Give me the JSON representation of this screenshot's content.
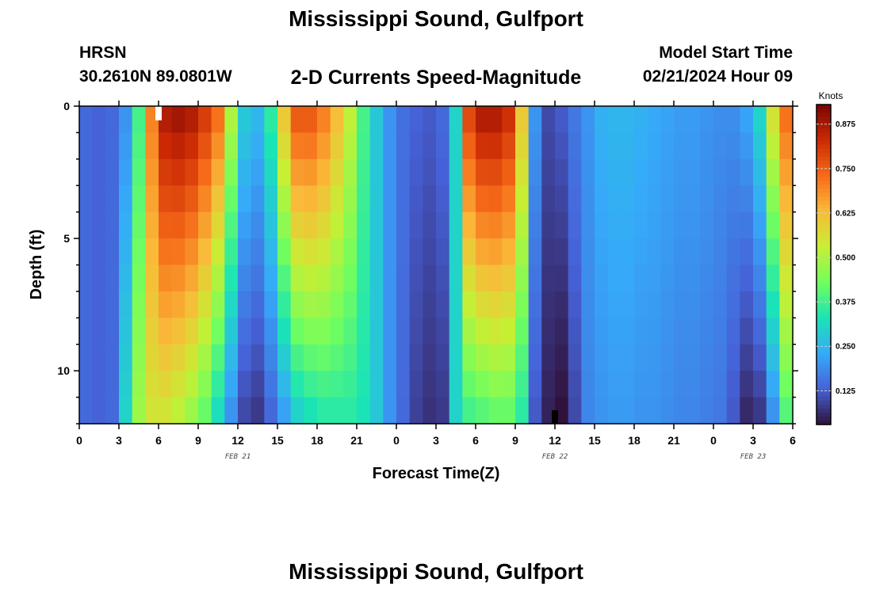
{
  "header": {
    "title": "Mississippi Sound, Gulfport",
    "station_id": "HRSN",
    "station_location": "30.2610N  89.0801W",
    "subtitle": "2-D Currents Speed-Magnitude",
    "model_label": "Model Start Time",
    "model_time": "02/21/2024 Hour 09"
  },
  "footer": {
    "title": "Mississippi Sound, Gulfport"
  },
  "colors": {
    "background": "#ffffff",
    "axis": "#000000",
    "colormap": [
      "#30123b",
      "#4662d8",
      "#36aaf9",
      "#1ae4b6",
      "#72fe5e",
      "#c7ef34",
      "#faba39",
      "#f66b19",
      "#cb2a04",
      "#7a0403"
    ]
  },
  "chart_data": {
    "type": "heatmap",
    "title": "2-D Currents Speed-Magnitude",
    "xlabel": "Forecast Time(Z)",
    "ylabel": "Depth (ft)",
    "x_range_hours": [
      0,
      54
    ],
    "ylim": [
      0,
      12
    ],
    "x_tick_labels": [
      "0",
      "3",
      "6",
      "9",
      "12",
      "15",
      "18",
      "21",
      "0",
      "3",
      "6",
      "9",
      "12",
      "15",
      "18",
      "21",
      "0",
      "3",
      "6"
    ],
    "x_tick_hours": [
      0,
      3,
      6,
      9,
      12,
      15,
      18,
      21,
      24,
      27,
      30,
      33,
      36,
      39,
      42,
      45,
      48,
      51,
      54
    ],
    "y_ticks": [
      0,
      5,
      10
    ],
    "date_labels": [
      {
        "text": "FEB 21",
        "hour": 12
      },
      {
        "text": "FEB 22",
        "hour": 36
      },
      {
        "text": "FEB 23",
        "hour": 51
      }
    ],
    "colorbar": {
      "units": "Knots",
      "range": [
        0.03,
        0.93
      ],
      "ticks": [
        "0.125",
        "0.250",
        "0.375",
        "0.500",
        "0.625",
        "0.750",
        "0.875"
      ],
      "tick_values": [
        0.125,
        0.25,
        0.375,
        0.5,
        0.625,
        0.75,
        0.875
      ]
    },
    "time_columns": 54,
    "depth_rows": 12,
    "surface_speed_knots": [
      0.14,
      0.13,
      0.14,
      0.2,
      0.38,
      0.7,
      0.86,
      0.88,
      0.86,
      0.8,
      0.72,
      0.5,
      0.28,
      0.25,
      0.35,
      0.6,
      0.75,
      0.75,
      0.7,
      0.62,
      0.52,
      0.38,
      0.28,
      0.2,
      0.15,
      0.13,
      0.12,
      0.14,
      0.3,
      0.78,
      0.86,
      0.86,
      0.82,
      0.6,
      0.2,
      0.1,
      0.12,
      0.16,
      0.2,
      0.24,
      0.25,
      0.25,
      0.24,
      0.23,
      0.22,
      0.21,
      0.21,
      0.2,
      0.19,
      0.19,
      0.22,
      0.3,
      0.55,
      0.72
    ],
    "bottom_speed_knots": [
      0.14,
      0.13,
      0.14,
      0.3,
      0.48,
      0.55,
      0.55,
      0.52,
      0.48,
      0.42,
      0.32,
      0.2,
      0.1,
      0.08,
      0.14,
      0.22,
      0.3,
      0.33,
      0.35,
      0.35,
      0.35,
      0.33,
      0.28,
      0.2,
      0.14,
      0.09,
      0.07,
      0.08,
      0.3,
      0.38,
      0.4,
      0.42,
      0.42,
      0.35,
      0.12,
      0.05,
      0.03,
      0.1,
      0.18,
      0.2,
      0.21,
      0.21,
      0.2,
      0.2,
      0.19,
      0.18,
      0.18,
      0.17,
      0.16,
      0.12,
      0.06,
      0.08,
      0.2,
      0.4
    ],
    "notable_cells": [
      {
        "label": "Surface maximum near 6Z FEB 21",
        "hour": 6,
        "depth_ft": 0.5
      },
      {
        "label": "Bottom minimum near 12Z FEB 22",
        "hour": 36,
        "depth_ft": 11.5
      }
    ]
  }
}
